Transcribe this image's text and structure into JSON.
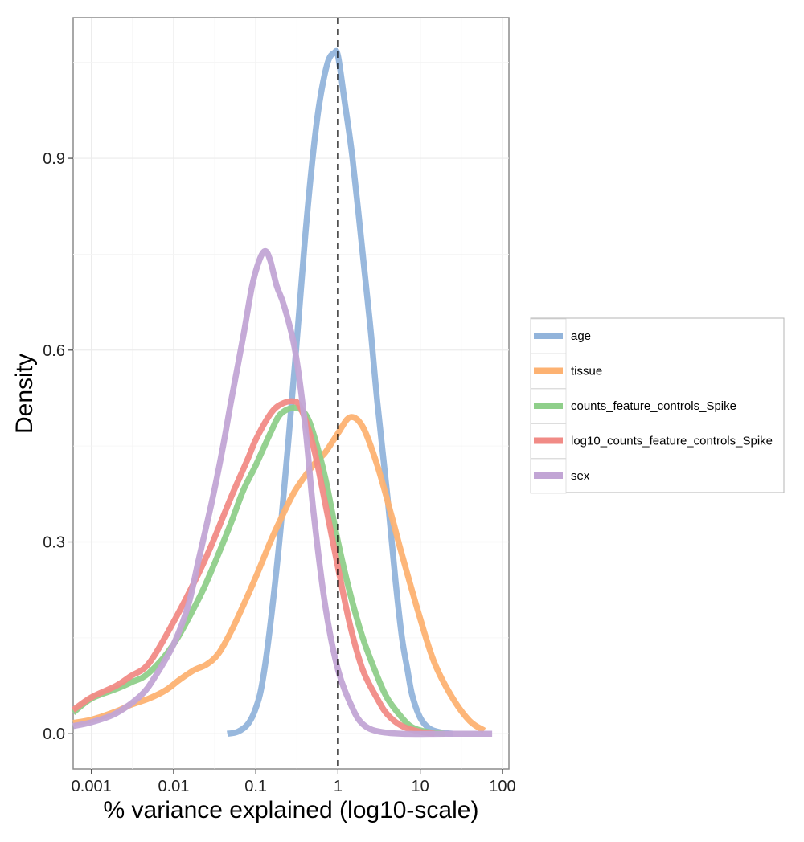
{
  "chart_data": {
    "type": "line",
    "title": "",
    "xlabel": "% variance explained (log10-scale)",
    "ylabel": "Density",
    "x_scale": "log10",
    "xlim": [
      0.0006,
      120
    ],
    "ylim": [
      -0.055,
      1.12
    ],
    "x_ticks": [
      0.001,
      0.01,
      0.1,
      1,
      10,
      100
    ],
    "x_tick_labels": [
      "0.001",
      "0.01",
      "0.1",
      "1",
      "10",
      "100"
    ],
    "y_ticks": [
      0.0,
      0.3,
      0.6,
      0.9
    ],
    "y_tick_labels": [
      "0.0",
      "0.3",
      "0.6",
      "0.9"
    ],
    "grid": true,
    "legend_position": "right",
    "reference_line": {
      "x": 1,
      "style": "dashed",
      "color": "#000000"
    },
    "series": [
      {
        "name": "age",
        "color": "#92b4db",
        "points": [
          [
            0.045,
            0.0
          ],
          [
            0.06,
            0.003
          ],
          [
            0.08,
            0.015
          ],
          [
            0.1,
            0.04
          ],
          [
            0.12,
            0.08
          ],
          [
            0.15,
            0.17
          ],
          [
            0.2,
            0.32
          ],
          [
            0.3,
            0.58
          ],
          [
            0.4,
            0.78
          ],
          [
            0.5,
            0.91
          ],
          [
            0.6,
            0.99
          ],
          [
            0.75,
            1.05
          ],
          [
            0.9,
            1.065
          ],
          [
            1.0,
            1.06
          ],
          [
            1.2,
            0.99
          ],
          [
            1.5,
            0.9
          ],
          [
            2.0,
            0.75
          ],
          [
            2.5,
            0.63
          ],
          [
            3.0,
            0.52
          ],
          [
            4.0,
            0.37
          ],
          [
            5.0,
            0.24
          ],
          [
            6.0,
            0.15
          ],
          [
            7.0,
            0.1
          ],
          [
            8.0,
            0.06
          ],
          [
            10.0,
            0.025
          ],
          [
            13.0,
            0.008
          ],
          [
            18.0,
            0.002
          ],
          [
            25.0,
            0.0
          ]
        ]
      },
      {
        "name": "tissue",
        "color": "#fdb272",
        "points": [
          [
            0.0006,
            0.017
          ],
          [
            0.001,
            0.022
          ],
          [
            0.002,
            0.035
          ],
          [
            0.003,
            0.045
          ],
          [
            0.005,
            0.055
          ],
          [
            0.008,
            0.068
          ],
          [
            0.012,
            0.085
          ],
          [
            0.018,
            0.1
          ],
          [
            0.025,
            0.108
          ],
          [
            0.035,
            0.125
          ],
          [
            0.05,
            0.16
          ],
          [
            0.07,
            0.2
          ],
          [
            0.1,
            0.245
          ],
          [
            0.15,
            0.3
          ],
          [
            0.2,
            0.335
          ],
          [
            0.3,
            0.38
          ],
          [
            0.5,
            0.42
          ],
          [
            0.7,
            0.44
          ],
          [
            1.0,
            0.47
          ],
          [
            1.4,
            0.495
          ],
          [
            2.0,
            0.48
          ],
          [
            3.0,
            0.42
          ],
          [
            4.5,
            0.34
          ],
          [
            6.0,
            0.28
          ],
          [
            10.0,
            0.18
          ],
          [
            15.0,
            0.11
          ],
          [
            25.0,
            0.055
          ],
          [
            40.0,
            0.02
          ],
          [
            60.0,
            0.005
          ]
        ]
      },
      {
        "name": "counts_feature_controls_Spike",
        "color": "#8fcf8a",
        "points": [
          [
            0.0006,
            0.033
          ],
          [
            0.001,
            0.055
          ],
          [
            0.002,
            0.07
          ],
          [
            0.003,
            0.08
          ],
          [
            0.005,
            0.095
          ],
          [
            0.01,
            0.14
          ],
          [
            0.02,
            0.21
          ],
          [
            0.03,
            0.26
          ],
          [
            0.05,
            0.33
          ],
          [
            0.07,
            0.38
          ],
          [
            0.1,
            0.42
          ],
          [
            0.15,
            0.47
          ],
          [
            0.2,
            0.5
          ],
          [
            0.3,
            0.51
          ],
          [
            0.4,
            0.5
          ],
          [
            0.5,
            0.47
          ],
          [
            0.7,
            0.4
          ],
          [
            1.0,
            0.3
          ],
          [
            1.4,
            0.22
          ],
          [
            2.0,
            0.15
          ],
          [
            3.0,
            0.09
          ],
          [
            4.0,
            0.055
          ],
          [
            6.0,
            0.025
          ],
          [
            8.0,
            0.01
          ],
          [
            12.0,
            0.003
          ],
          [
            20.0,
            0.0
          ]
        ]
      },
      {
        "name": "log10_counts_feature_controls_Spike",
        "color": "#f18b86",
        "points": [
          [
            0.0006,
            0.037
          ],
          [
            0.001,
            0.057
          ],
          [
            0.002,
            0.075
          ],
          [
            0.003,
            0.09
          ],
          [
            0.005,
            0.11
          ],
          [
            0.01,
            0.175
          ],
          [
            0.02,
            0.25
          ],
          [
            0.03,
            0.3
          ],
          [
            0.05,
            0.37
          ],
          [
            0.08,
            0.43
          ],
          [
            0.1,
            0.46
          ],
          [
            0.15,
            0.5
          ],
          [
            0.2,
            0.515
          ],
          [
            0.28,
            0.52
          ],
          [
            0.35,
            0.51
          ],
          [
            0.5,
            0.45
          ],
          [
            0.7,
            0.36
          ],
          [
            1.0,
            0.26
          ],
          [
            1.4,
            0.17
          ],
          [
            2.0,
            0.1
          ],
          [
            3.0,
            0.055
          ],
          [
            4.0,
            0.03
          ],
          [
            6.0,
            0.012
          ],
          [
            10.0,
            0.003
          ],
          [
            15.0,
            0.0
          ]
        ]
      },
      {
        "name": "sex",
        "color": "#c2a5d5",
        "points": [
          [
            0.0006,
            0.012
          ],
          [
            0.001,
            0.018
          ],
          [
            0.002,
            0.032
          ],
          [
            0.004,
            0.06
          ],
          [
            0.006,
            0.09
          ],
          [
            0.01,
            0.14
          ],
          [
            0.015,
            0.2
          ],
          [
            0.02,
            0.27
          ],
          [
            0.03,
            0.37
          ],
          [
            0.04,
            0.45
          ],
          [
            0.05,
            0.52
          ],
          [
            0.07,
            0.62
          ],
          [
            0.09,
            0.7
          ],
          [
            0.11,
            0.74
          ],
          [
            0.13,
            0.755
          ],
          [
            0.15,
            0.74
          ],
          [
            0.18,
            0.7
          ],
          [
            0.22,
            0.67
          ],
          [
            0.3,
            0.6
          ],
          [
            0.4,
            0.48
          ],
          [
            0.5,
            0.35
          ],
          [
            0.7,
            0.2
          ],
          [
            1.0,
            0.1
          ],
          [
            1.5,
            0.04
          ],
          [
            2.0,
            0.015
          ],
          [
            3.0,
            0.004
          ],
          [
            6.0,
            0.0
          ],
          [
            20.0,
            0.0
          ],
          [
            75.0,
            0.0
          ]
        ]
      }
    ]
  }
}
